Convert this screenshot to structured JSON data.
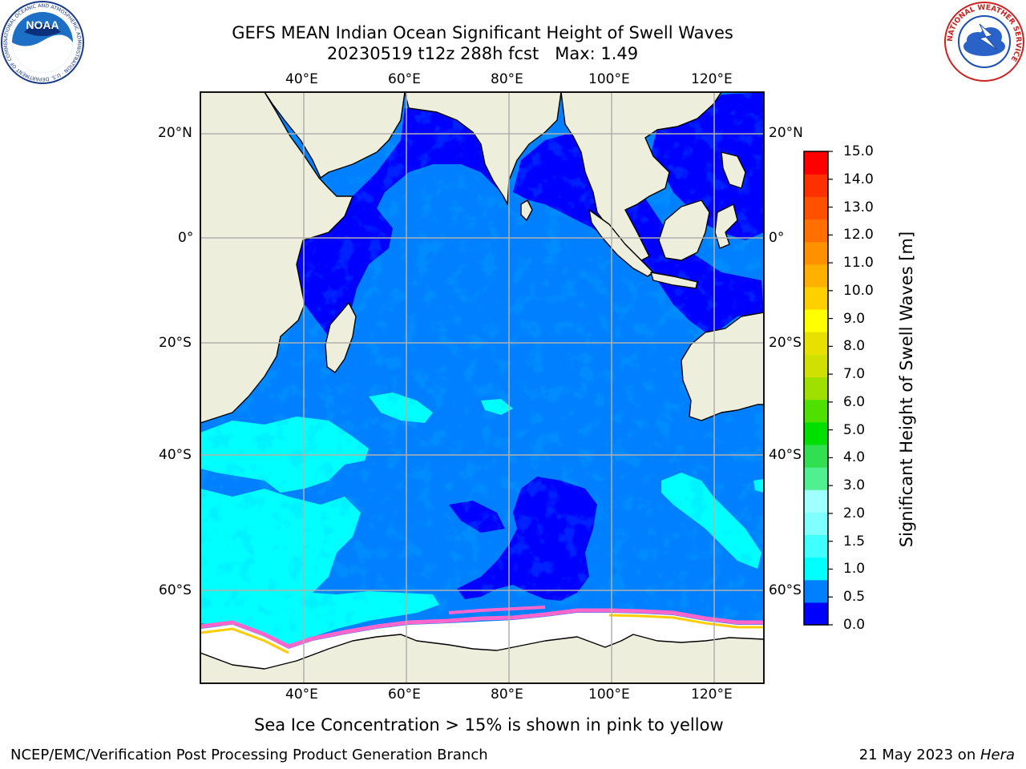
{
  "title": {
    "line1": "GEFS MEAN Indian Ocean Significant Height of Swell Waves",
    "line2": "20230519 t12z 288h fcst   Max: 1.49"
  },
  "axes": {
    "lon_ticks": [
      "40°E",
      "60°E",
      "80°E",
      "100°E",
      "120°E"
    ],
    "lat_ticks": [
      "20°N",
      "0°",
      "20°S",
      "40°S",
      "60°S"
    ]
  },
  "colorbar": {
    "label": "Significant Height of Swell Waves [m]",
    "ticks": [
      "15.0",
      "14.0",
      "13.0",
      "12.0",
      "11.0",
      "10.0",
      "9.0",
      "8.0",
      "7.0",
      "6.0",
      "5.0",
      "4.0",
      "3.0",
      "2.0",
      "1.5",
      "1.0",
      "0.5",
      "0.0"
    ],
    "colors": [
      "#0000ff",
      "#0080ff",
      "#00ffff",
      "#40ffff",
      "#80ffff",
      "#a0ffff",
      "#50f090",
      "#30e050",
      "#00e000",
      "#50e000",
      "#a0e000",
      "#d0e000",
      "#e8e000",
      "#ffff00",
      "#ffd000",
      "#ffb000",
      "#ff9000",
      "#ff7000",
      "#ff5000",
      "#ff3000",
      "#ff0000"
    ]
  },
  "map_colors": {
    "land": "#eeeedd",
    "ocean_dark": "#0000ff",
    "ocean_mid": "#0080ff",
    "swell_cyan": "#00ffff",
    "ice": "#ffffff",
    "ice_edge_pink": "#ff66cc",
    "ice_edge_yellow": "#ffcc00",
    "grid": "#b0b0b0"
  },
  "caption": "Sea Ice Concentration > 15% is shown in pink to yellow",
  "footer": {
    "left": "NCEP/EMC/Verification Post Processing Product Generation Branch",
    "date": "21 May 2023 on ",
    "machine": "Hera"
  },
  "logos": {
    "noaa_text": "NOAA",
    "noaa_ring": "NATIONAL OCEANIC AND ATMOSPHERIC ADMINISTRATION · U.S. DEPARTMENT OF COMMERCE",
    "nws_ring": "NATIONAL WEATHER SERVICE"
  }
}
